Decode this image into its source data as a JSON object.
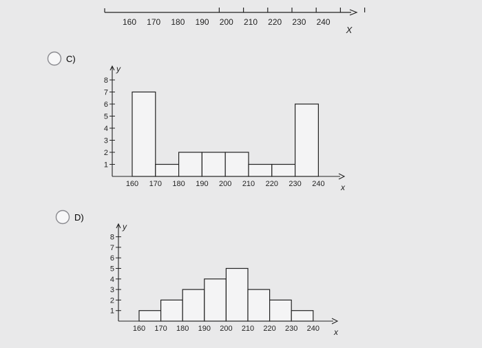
{
  "colors": {
    "ink": "#222222",
    "bar_fill": "#f4f4f5",
    "background": "#e9e9ea",
    "radio_stroke": "#8a8a8f"
  },
  "options": [
    {
      "label": "C)"
    },
    {
      "label": "D)"
    }
  ],
  "chart_data": [
    {
      "type": "bar",
      "x": [],
      "ticks": [
        "160",
        "170",
        "180",
        "190",
        "200",
        "210",
        "220",
        "230",
        "240"
      ],
      "xlabel": "X",
      "note": "partially visible number line (top of image)",
      "xlim": [
        155,
        245
      ]
    },
    {
      "type": "bar",
      "bins": [
        [
          160,
          170
        ],
        [
          170,
          180
        ],
        [
          180,
          190
        ],
        [
          190,
          200
        ],
        [
          200,
          210
        ],
        [
          210,
          220
        ],
        [
          220,
          230
        ],
        [
          230,
          240
        ]
      ],
      "values": [
        7,
        1,
        2,
        2,
        2,
        1,
        1,
        6
      ],
      "xticks": [
        "160",
        "170",
        "180",
        "190",
        "200",
        "210",
        "220",
        "230",
        "240"
      ],
      "yticks": [
        "1",
        "2",
        "3",
        "4",
        "5",
        "6",
        "7",
        "8"
      ],
      "xlabel": "x",
      "ylabel": "y",
      "ylim": [
        0,
        8
      ],
      "grid": false
    },
    {
      "type": "bar",
      "bins": [
        [
          160,
          170
        ],
        [
          170,
          180
        ],
        [
          180,
          190
        ],
        [
          190,
          200
        ],
        [
          200,
          210
        ],
        [
          210,
          220
        ],
        [
          220,
          230
        ],
        [
          230,
          240
        ]
      ],
      "values": [
        1,
        2,
        3,
        4,
        5,
        3,
        2,
        1
      ],
      "xticks": [
        "160",
        "170",
        "180",
        "190",
        "200",
        "210",
        "220",
        "230",
        "240"
      ],
      "yticks": [
        "1",
        "2",
        "3",
        "4",
        "5",
        "6",
        "7",
        "8"
      ],
      "xlabel": "x",
      "ylabel": "y",
      "ylim": [
        0,
        8
      ],
      "grid": false
    }
  ]
}
